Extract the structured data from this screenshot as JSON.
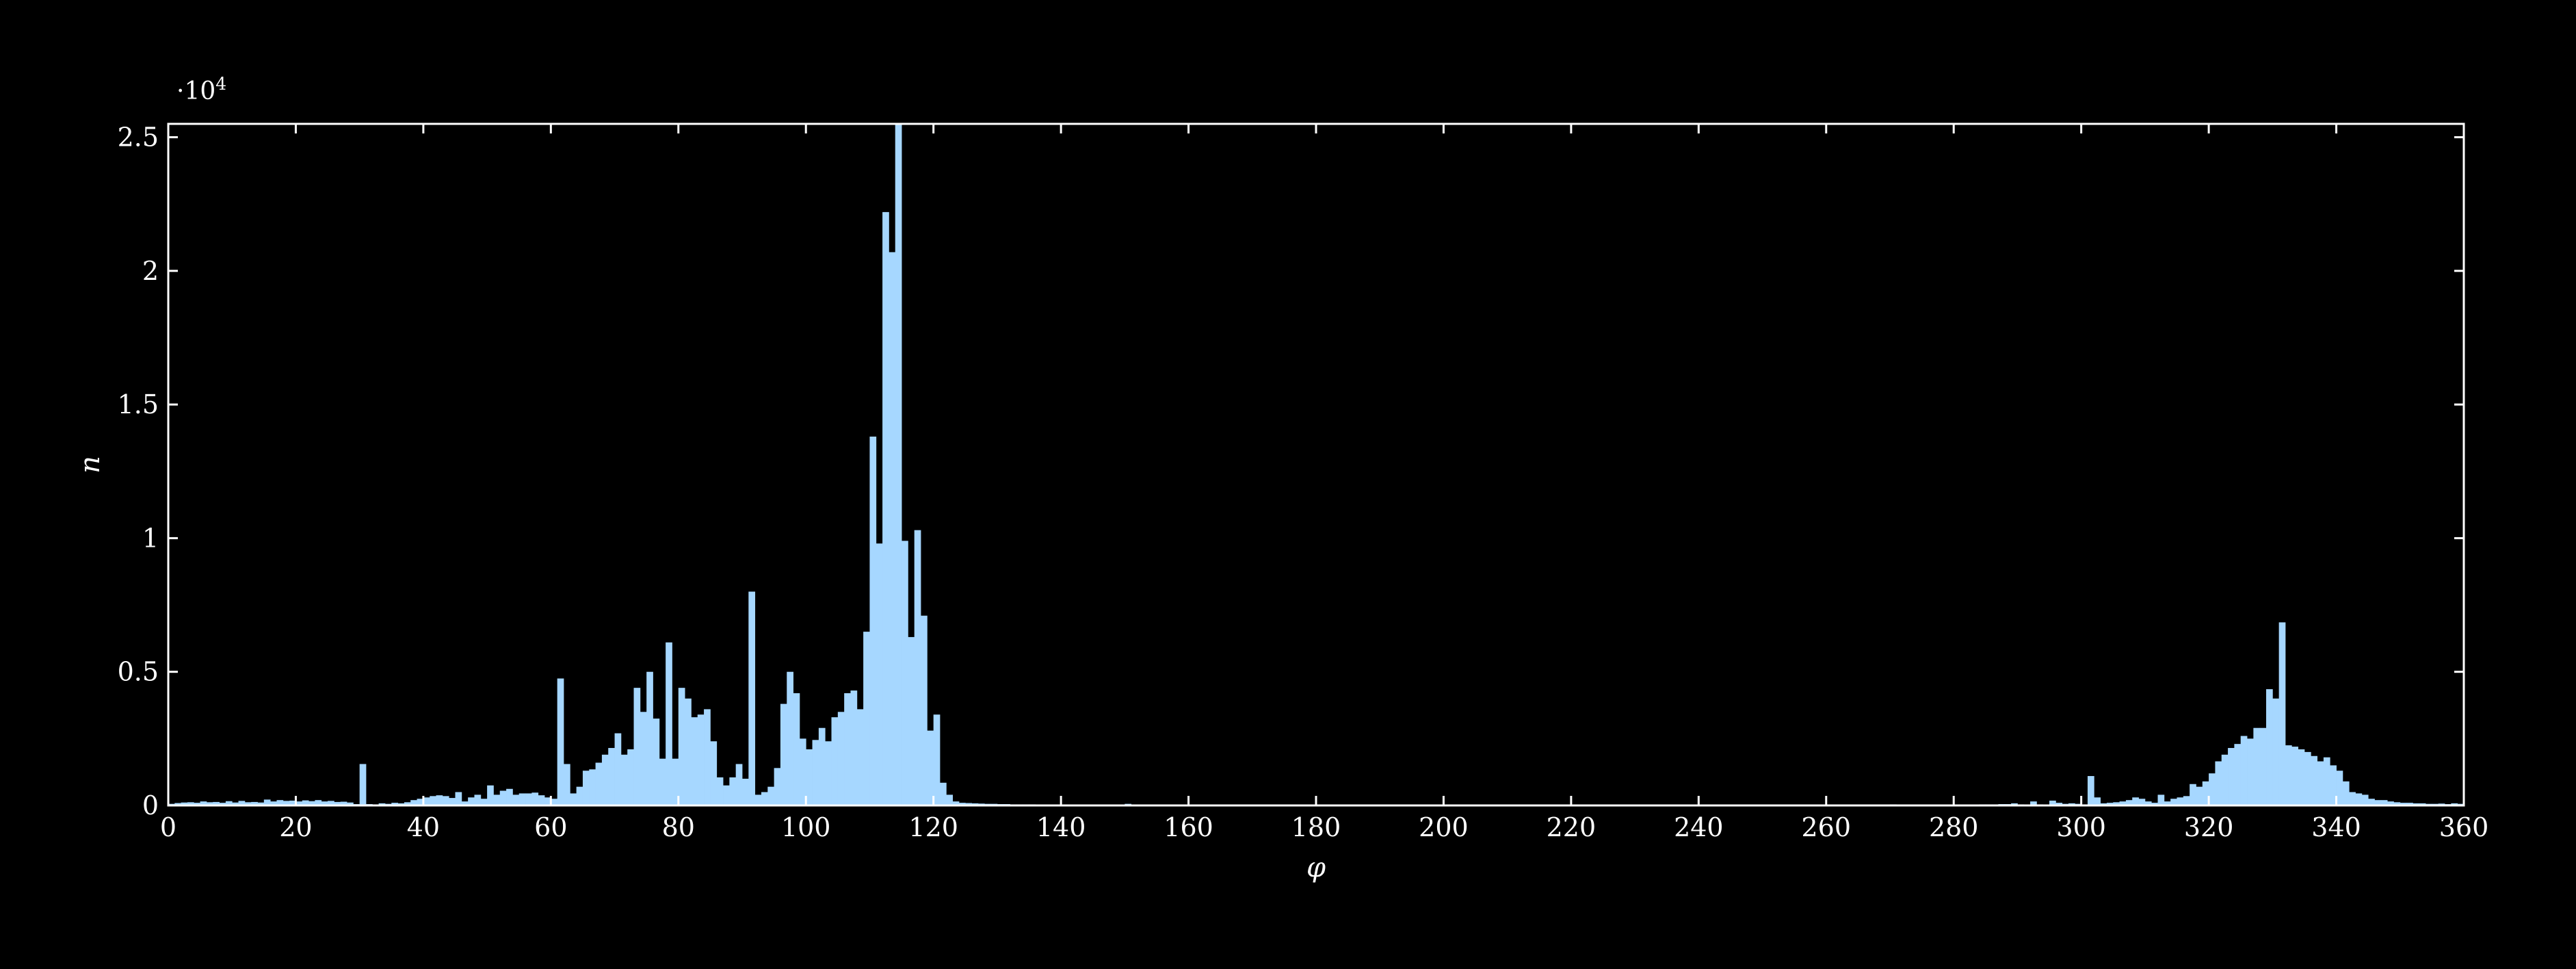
{
  "colors": {
    "background": "#000000",
    "bar": "#a6d7ff",
    "axis": "#ffffff"
  },
  "chart_data": {
    "type": "bar",
    "title": "",
    "xlabel": "φ",
    "ylabel": "n",
    "y_multiplier_base": "·10",
    "y_multiplier_exp": "4",
    "xlim": [
      0,
      360
    ],
    "ylim": [
      0,
      25500
    ],
    "grid": false,
    "bin_width": 1,
    "x_ticks": [
      0,
      20,
      40,
      60,
      80,
      100,
      120,
      140,
      160,
      180,
      200,
      220,
      240,
      260,
      280,
      300,
      320,
      340,
      360
    ],
    "x_tick_labels": [
      "0",
      "20",
      "40",
      "60",
      "80",
      "100",
      "120",
      "140",
      "160",
      "180",
      "200",
      "220",
      "240",
      "260",
      "280",
      "300",
      "320",
      "340",
      "360"
    ],
    "y_ticks": [
      0,
      5000,
      10000,
      15000,
      20000,
      25000
    ],
    "y_tick_labels": [
      "0",
      "0.5",
      "1",
      "1.5",
      "2",
      "2.5"
    ],
    "values": [
      60,
      90,
      110,
      120,
      100,
      150,
      120,
      130,
      100,
      160,
      110,
      170,
      120,
      130,
      110,
      220,
      150,
      200,
      170,
      180,
      150,
      190,
      160,
      200,
      150,
      170,
      130,
      140,
      110,
      50,
      1550,
      50,
      40,
      80,
      60,
      100,
      80,
      120,
      200,
      250,
      300,
      350,
      380,
      350,
      280,
      500,
      150,
      300,
      400,
      250,
      750,
      400,
      550,
      620,
      400,
      450,
      450,
      480,
      380,
      300,
      250,
      4750,
      1550,
      450,
      700,
      1300,
      1350,
      1600,
      1900,
      2150,
      2700,
      1900,
      2100,
      4400,
      3500,
      5000,
      3250,
      1750,
      6100,
      1750,
      4400,
      4000,
      3300,
      3400,
      3600,
      2400,
      1050,
      750,
      1050,
      1550,
      1000,
      8000,
      400,
      500,
      700,
      1400,
      3800,
      5000,
      4200,
      2500,
      2100,
      2450,
      2900,
      2400,
      3300,
      3500,
      4200,
      4300,
      3600,
      6500,
      13800,
      9800,
      22200,
      20700,
      25500,
      9900,
      6300,
      10300,
      7100,
      2800,
      3400,
      850,
      400,
      150,
      100,
      90,
      80,
      70,
      60,
      60,
      50,
      50,
      40,
      40,
      40,
      40,
      30,
      30,
      30,
      30,
      30,
      30,
      30,
      30,
      30,
      30,
      30,
      30,
      30,
      30,
      60,
      30,
      30,
      30,
      30,
      30,
      30,
      30,
      30,
      20,
      20,
      20,
      20,
      20,
      20,
      20,
      20,
      20,
      20,
      20,
      20,
      20,
      20,
      20,
      20,
      20,
      20,
      20,
      20,
      20,
      20,
      20,
      20,
      20,
      20,
      20,
      20,
      20,
      20,
      20,
      20,
      20,
      20,
      20,
      20,
      20,
      20,
      20,
      20,
      20,
      20,
      20,
      20,
      20,
      20,
      20,
      20,
      20,
      20,
      20,
      20,
      20,
      20,
      20,
      20,
      20,
      20,
      20,
      20,
      20,
      20,
      20,
      20,
      20,
      20,
      20,
      20,
      20,
      20,
      20,
      20,
      20,
      20,
      20,
      20,
      20,
      20,
      20,
      20,
      20,
      20,
      20,
      20,
      20,
      20,
      20,
      20,
      20,
      20,
      20,
      20,
      20,
      20,
      20,
      20,
      20,
      20,
      20,
      20,
      20,
      20,
      20,
      20,
      20,
      20,
      20,
      20,
      20,
      20,
      20,
      40,
      20,
      20,
      20,
      20,
      20,
      20,
      20,
      20,
      30,
      30,
      30,
      30,
      30,
      40,
      40,
      40,
      50,
      50,
      80,
      40,
      30,
      150,
      40,
      30,
      180,
      100,
      60,
      80,
      60,
      40,
      1100,
      300,
      80,
      100,
      120,
      150,
      200,
      300,
      250,
      150,
      100,
      400,
      150,
      250,
      300,
      350,
      800,
      700,
      900,
      1200,
      1650,
      1900,
      2150,
      2300,
      2600,
      2500,
      2900,
      2900,
      4350,
      4000,
      6850,
      2250,
      2200,
      2100,
      2000,
      1850,
      1650,
      1800,
      1500,
      1300,
      900,
      500,
      450,
      400,
      250,
      200,
      200,
      150,
      120,
      100,
      100,
      80,
      80,
      60,
      60,
      70,
      50,
      80,
      60
    ]
  }
}
